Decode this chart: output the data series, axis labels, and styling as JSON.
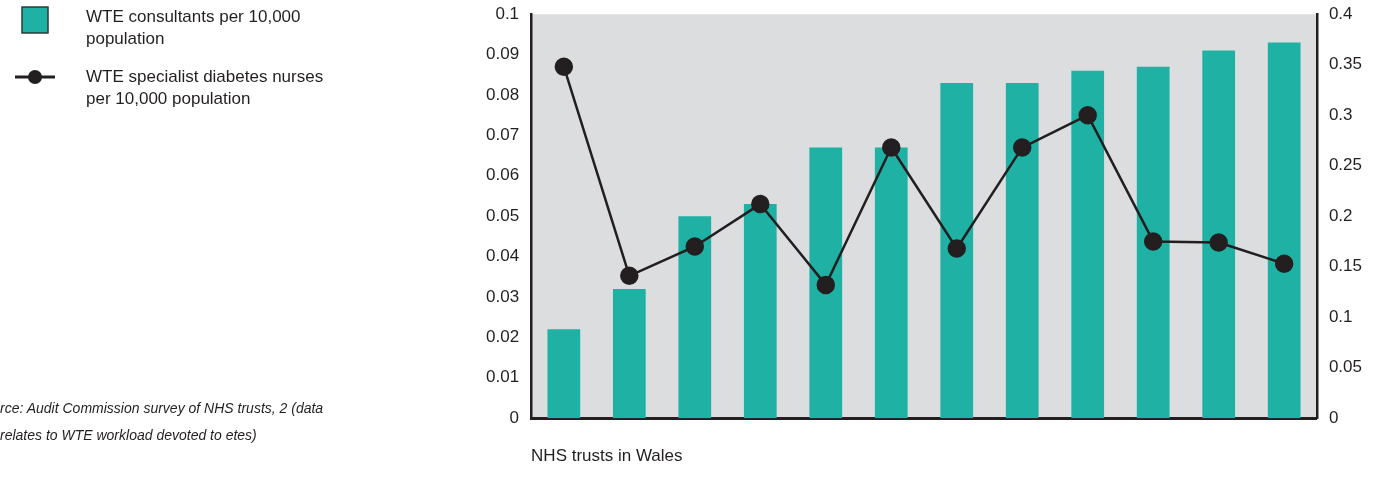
{
  "chart_data": {
    "type": "bar",
    "xlabel": "NHS trusts in Wales",
    "categories": [
      null,
      null,
      null,
      null,
      null,
      null,
      null,
      null,
      null,
      null,
      null,
      null
    ],
    "series": [
      {
        "name": "WTE consultants per 10,000 population",
        "color": "#20b1a5",
        "values": [
          0.022,
          0.032,
          0.05,
          0.053,
          0.067,
          0.067,
          0.083,
          0.083,
          0.086,
          0.087,
          0.091,
          0.093
        ]
      },
      {
        "name": "WTE specialist diabetes nurses per 10,000 population",
        "type": "line",
        "axis": "y2",
        "color": "#231f20",
        "marker": "circle",
        "values": [
          0.348,
          0.141,
          0.17,
          0.212,
          0.132,
          0.268,
          0.168,
          0.268,
          0.3,
          0.175,
          0.174,
          0.153
        ]
      }
    ],
    "ylim": [
      0,
      0.1
    ],
    "yticks": [
      0,
      0.01,
      0.02,
      0.03,
      0.04,
      0.05,
      0.06,
      0.07,
      0.08,
      0.09,
      0.1
    ],
    "y2lim": [
      0,
      0.4
    ],
    "y2ticks": [
      0,
      0.05,
      0.1,
      0.15,
      0.2,
      0.25,
      0.3,
      0.35,
      0.4
    ],
    "grid": false,
    "legend": "left",
    "annotations": [
      "rce: Audit Commission survey of NHS trusts, 2 (data relates to WTE workload devoted to etes)"
    ]
  }
}
